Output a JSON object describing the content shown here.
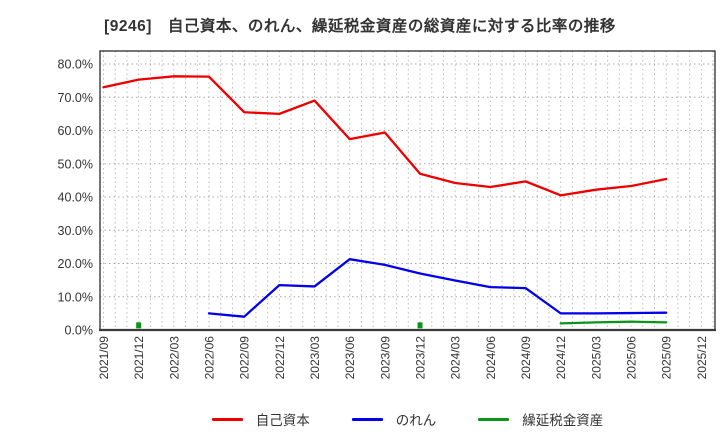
{
  "title": "[9246]　自己資本、のれん、繰延税金資産の総資産に対する比率の推移",
  "chart_data": {
    "type": "line",
    "title": "[9246]　自己資本、のれん、繰延税金資産の総資産に対する比率の推移",
    "xlabel": "",
    "ylabel": "",
    "ylim": [
      0,
      80
    ],
    "grid": "dotted",
    "legend_position": "bottom",
    "y_tick_labels": [
      "0.0%",
      "10.0%",
      "20.0%",
      "30.0%",
      "40.0%",
      "50.0%",
      "60.0%",
      "70.0%",
      "80.0%"
    ],
    "categories": [
      "2021/09",
      "2021/12",
      "2022/03",
      "2022/06",
      "2022/09",
      "2022/12",
      "2023/03",
      "2023/06",
      "2023/09",
      "2023/12",
      "2024/03",
      "2024/06",
      "2024/09",
      "2024/12",
      "2025/03",
      "2025/06",
      "2025/09",
      "2025/12"
    ],
    "series": [
      {
        "name": "自己資本",
        "color": "#ee0000",
        "values": [
          73.0,
          75.3,
          76.3,
          76.2,
          65.5,
          65.0,
          69.0,
          57.4,
          59.4,
          47.0,
          44.2,
          43.0,
          44.7,
          40.5,
          42.2,
          43.3,
          45.4,
          null
        ]
      },
      {
        "name": "のれん",
        "color": "#0000ee",
        "values": [
          null,
          null,
          null,
          5.0,
          4.0,
          13.5,
          13.1,
          21.3,
          19.6,
          17.0,
          14.9,
          12.9,
          12.6,
          5.0,
          5.0,
          5.1,
          5.2,
          null
        ]
      },
      {
        "name": "繰延税金資産",
        "color": "#0a9618",
        "values": [
          null,
          1.4,
          null,
          null,
          null,
          null,
          null,
          null,
          null,
          1.4,
          null,
          null,
          null,
          2.0,
          2.3,
          2.5,
          2.3,
          null
        ]
      }
    ]
  }
}
